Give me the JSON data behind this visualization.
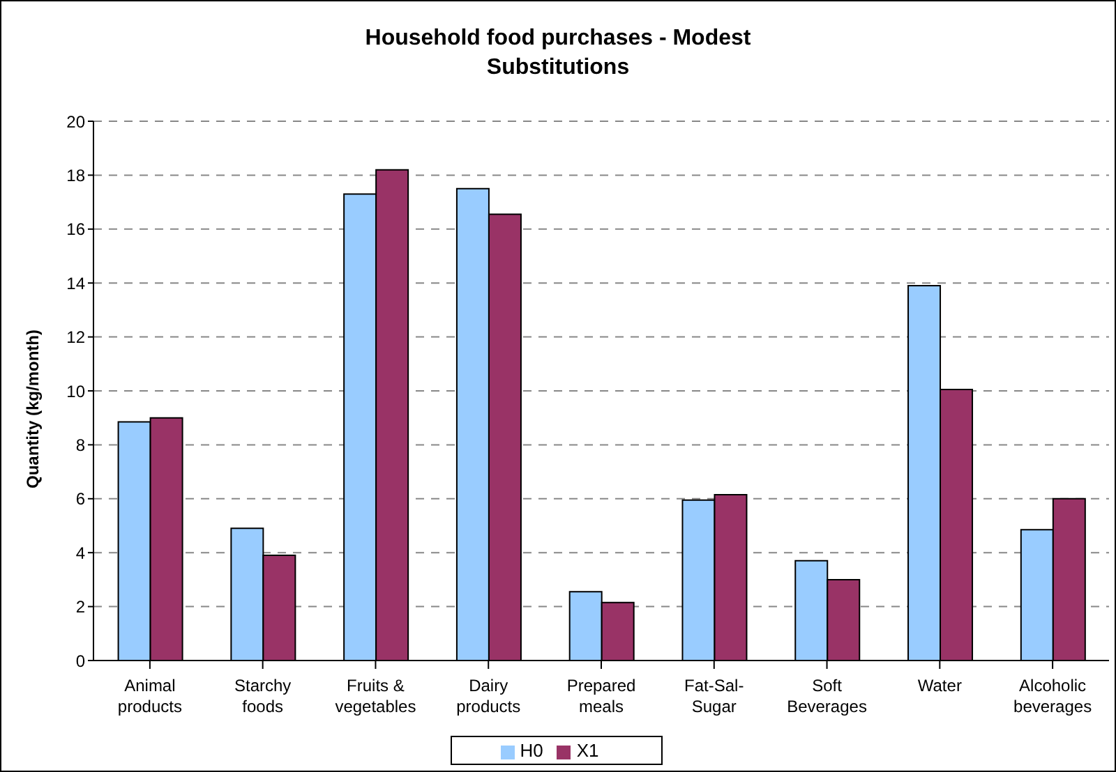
{
  "chart_data": {
    "type": "bar",
    "title": "Household food purchases - Modest Substitutions",
    "ylabel": "Quantity (kg/month)",
    "categories": [
      "Animal products",
      "Starchy foods",
      "Fruits & vegetables",
      "Dairy products",
      "Prepared meals",
      "Fat-Sal-Sugar",
      "Soft Beverages",
      "Water",
      "Alcoholic beverages"
    ],
    "series": [
      {
        "name": "H0",
        "color": "#99ccff",
        "values": [
          8.85,
          4.9,
          17.3,
          17.5,
          2.55,
          5.95,
          3.7,
          13.9,
          4.85
        ]
      },
      {
        "name": "X1",
        "color": "#993366",
        "values": [
          9.0,
          3.9,
          18.2,
          16.55,
          2.15,
          6.15,
          3.0,
          10.05,
          6.0
        ]
      }
    ],
    "ylim": [
      0,
      20
    ],
    "yticks": [
      0,
      2,
      4,
      6,
      8,
      10,
      12,
      14,
      16,
      18,
      20
    ],
    "grid": "y",
    "legend": "bottom"
  }
}
